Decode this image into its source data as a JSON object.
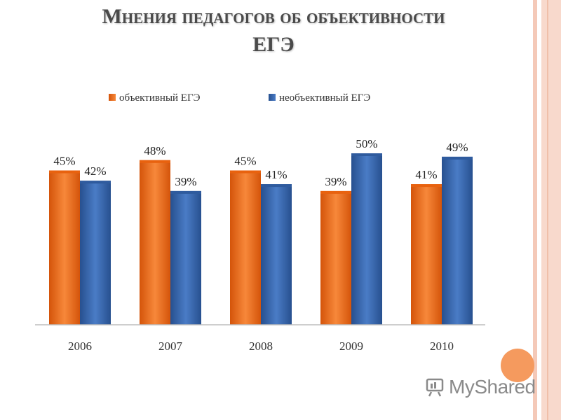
{
  "slide": {
    "title_line1": "Мнения педагогов об объективности",
    "title_line2": "ЕГЭ",
    "watermark": "MyShared"
  },
  "colors": {
    "orange": "#e8620f",
    "orange_light": "#f7883a",
    "blue": "#2f5b9e",
    "blue_light": "#4a7cc6",
    "accent_circle": "#f59a5e"
  },
  "chart_data": {
    "type": "bar",
    "categories": [
      "2006",
      "2007",
      "2008",
      "2009",
      "2010"
    ],
    "series": [
      {
        "name": "объективный ЕГЭ",
        "values": [
          45,
          48,
          45,
          39,
          41
        ],
        "labels": [
          "45%",
          "48%",
          "45%",
          "39%",
          "41%"
        ]
      },
      {
        "name": "необъективный ЕГЭ",
        "values": [
          42,
          39,
          41,
          50,
          49
        ],
        "labels": [
          "42%",
          "39%",
          "41%",
          "50%",
          "49%"
        ]
      }
    ],
    "ylim": [
      0,
      55
    ],
    "grid": false,
    "legend": "top",
    "xlabel": "",
    "ylabel": ""
  }
}
